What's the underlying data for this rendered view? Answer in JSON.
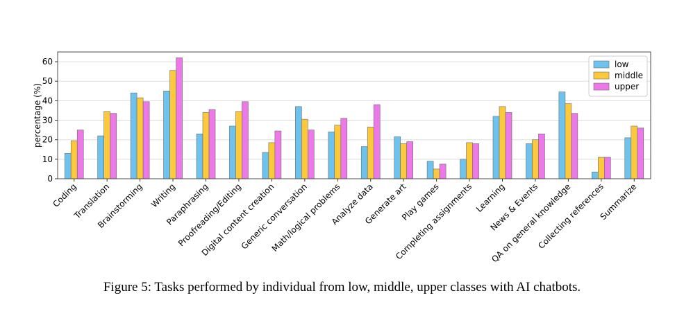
{
  "caption": "Figure 5: Tasks performed by individual from low, middle, upper classes with AI chatbots.",
  "chart_data": {
    "type": "bar",
    "title": "",
    "xlabel": "",
    "ylabel": "percentage (%)",
    "ylim": [
      0,
      65
    ],
    "yticks": [
      0,
      10,
      20,
      30,
      40,
      50,
      60
    ],
    "grid": "horizontal",
    "legend_position": "top-right",
    "categories": [
      "Coding",
      "Translation",
      "Brainstorming",
      "Writing",
      "Paraphrasing",
      "Proofreading/Editing",
      "Digital content creation",
      "Generic conversation",
      "Math/logical problems",
      "Analyze data",
      "Generate art",
      "Play games",
      "Completing assignments",
      "Learning",
      "News & Events",
      "QA on general knowledge",
      "Collecting references",
      "Summarize"
    ],
    "series": [
      {
        "name": "low",
        "color": "#6ec3ee",
        "values": [
          13,
          22,
          44,
          45,
          23,
          27,
          13.5,
          37,
          24,
          16.5,
          21.5,
          9,
          10,
          32,
          18,
          44.5,
          3.5,
          21
        ]
      },
      {
        "name": "middle",
        "color": "#fbc93b",
        "values": [
          19.5,
          34.5,
          41.5,
          55.5,
          34,
          34.5,
          18.5,
          30.5,
          27.5,
          26.5,
          18,
          5,
          18.5,
          37,
          20,
          38.5,
          11,
          27
        ]
      },
      {
        "name": "upper",
        "color": "#ec79e7",
        "values": [
          25,
          33.5,
          39.5,
          62,
          35.5,
          39.5,
          24.5,
          25,
          31,
          38,
          19,
          7.5,
          18,
          34,
          23,
          33.5,
          11,
          26
        ]
      }
    ]
  }
}
